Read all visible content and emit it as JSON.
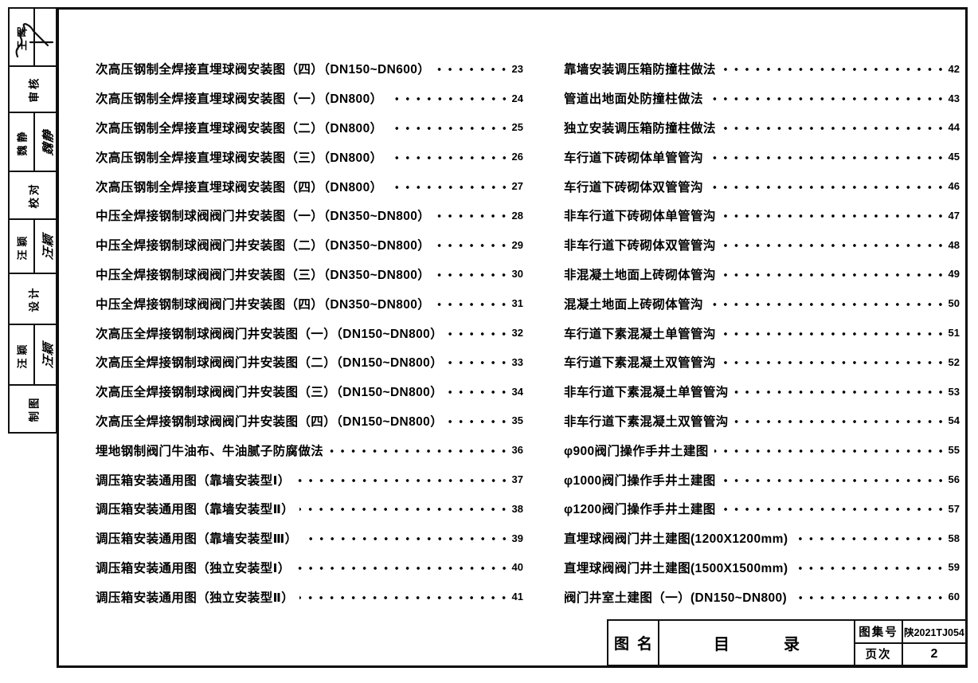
{
  "sidebar": {
    "rows": [
      {
        "type": "pair",
        "label": "王晖",
        "signature": "",
        "scribble": true
      },
      {
        "type": "single",
        "label": "审核"
      },
      {
        "type": "pair",
        "label": "魏静",
        "signature": "魏静",
        "scribble": false
      },
      {
        "type": "single",
        "label": "校对"
      },
      {
        "type": "pair",
        "label": "汪颖",
        "signature": "汪颖",
        "scribble": false
      },
      {
        "type": "single",
        "label": "设计"
      },
      {
        "type": "pair",
        "label": "汪颖",
        "signature": "汪颖",
        "scribble": false
      },
      {
        "type": "single",
        "label": "制图"
      }
    ]
  },
  "toc": {
    "left_column": [
      {
        "title": "次高压钢制全焊接直埋球阀安装图（四）（DN150~DN600）",
        "page": "23"
      },
      {
        "title": "次高压钢制全焊接直埋球阀安装图（一）（DN800）",
        "page": "24"
      },
      {
        "title": "次高压钢制全焊接直埋球阀安装图（二）（DN800）",
        "page": "25"
      },
      {
        "title": "次高压钢制全焊接直埋球阀安装图（三）（DN800）",
        "page": "26"
      },
      {
        "title": "次高压钢制全焊接直埋球阀安装图（四）（DN800）",
        "page": "27"
      },
      {
        "title": "中压全焊接钢制球阀阀门井安装图（一）（DN350~DN800）",
        "page": "28"
      },
      {
        "title": "中压全焊接钢制球阀阀门井安装图（二）（DN350~DN800）",
        "page": "29"
      },
      {
        "title": "中压全焊接钢制球阀阀门井安装图（三）（DN350~DN800）",
        "page": "30"
      },
      {
        "title": "中压全焊接钢制球阀阀门井安装图（四）（DN350~DN800）",
        "page": "31"
      },
      {
        "title": "次高压全焊接钢制球阀阀门井安装图（一）（DN150~DN800）",
        "page": "32"
      },
      {
        "title": "次高压全焊接钢制球阀阀门井安装图（二）（DN150~DN800）",
        "page": "33"
      },
      {
        "title": "次高压全焊接钢制球阀阀门井安装图（三）（DN150~DN800）",
        "page": "34"
      },
      {
        "title": "次高压全焊接钢制球阀阀门井安装图（四）（DN150~DN800）",
        "page": "35"
      },
      {
        "title": "埋地钢制阀门牛油布、牛油腻子防腐做法",
        "page": "36"
      },
      {
        "title": "调压箱安装通用图（靠墙安装型Ⅰ）",
        "page": "37"
      },
      {
        "title": "调压箱安装通用图（靠墙安装型Ⅱ）",
        "page": "38"
      },
      {
        "title": "调压箱安装通用图（靠墙安装型Ⅲ）",
        "page": "39"
      },
      {
        "title": "调压箱安装通用图（独立安装型Ⅰ）",
        "page": "40"
      },
      {
        "title": "调压箱安装通用图（独立安装型Ⅱ）",
        "page": "41"
      }
    ],
    "right_column": [
      {
        "title": "靠墙安装调压箱防撞柱做法",
        "page": "42"
      },
      {
        "title": "管道出地面处防撞柱做法",
        "page": "43"
      },
      {
        "title": "独立安装调压箱防撞柱做法",
        "page": "44"
      },
      {
        "title": "车行道下砖砌体单管管沟",
        "page": "45"
      },
      {
        "title": "车行道下砖砌体双管管沟",
        "page": "46"
      },
      {
        "title": "非车行道下砖砌体单管管沟",
        "page": "47"
      },
      {
        "title": "非车行道下砖砌体双管管沟",
        "page": "48"
      },
      {
        "title": "非混凝土地面上砖砌体管沟",
        "page": "49"
      },
      {
        "title": "混凝土地面上砖砌体管沟",
        "page": "50"
      },
      {
        "title": "车行道下素混凝土单管管沟",
        "page": "51"
      },
      {
        "title": "车行道下素混凝土双管管沟",
        "page": "52"
      },
      {
        "title": "非车行道下素混凝土单管管沟",
        "page": "53"
      },
      {
        "title": "非车行道下素混凝土双管管沟",
        "page": "54"
      },
      {
        "title": "φ900阀门操作手井土建图",
        "page": "55"
      },
      {
        "title": "φ1000阀门操作手井土建图",
        "page": "56"
      },
      {
        "title": "φ1200阀门操作手井土建图",
        "page": "57"
      },
      {
        "title": "直埋球阀阀门井土建图(1200X1200mm)",
        "page": "58"
      },
      {
        "title": "直埋球阀阀门井土建图(1500X1500mm)",
        "page": "59"
      },
      {
        "title": "阀门井室土建图（一）(DN150~DN800)",
        "page": "60"
      }
    ]
  },
  "title_block": {
    "name_label": "图名",
    "name_value": "目录",
    "atlas_label": "图集号",
    "atlas_value": "陕2021TJ054",
    "page_label": "页次",
    "page_value": "2"
  }
}
